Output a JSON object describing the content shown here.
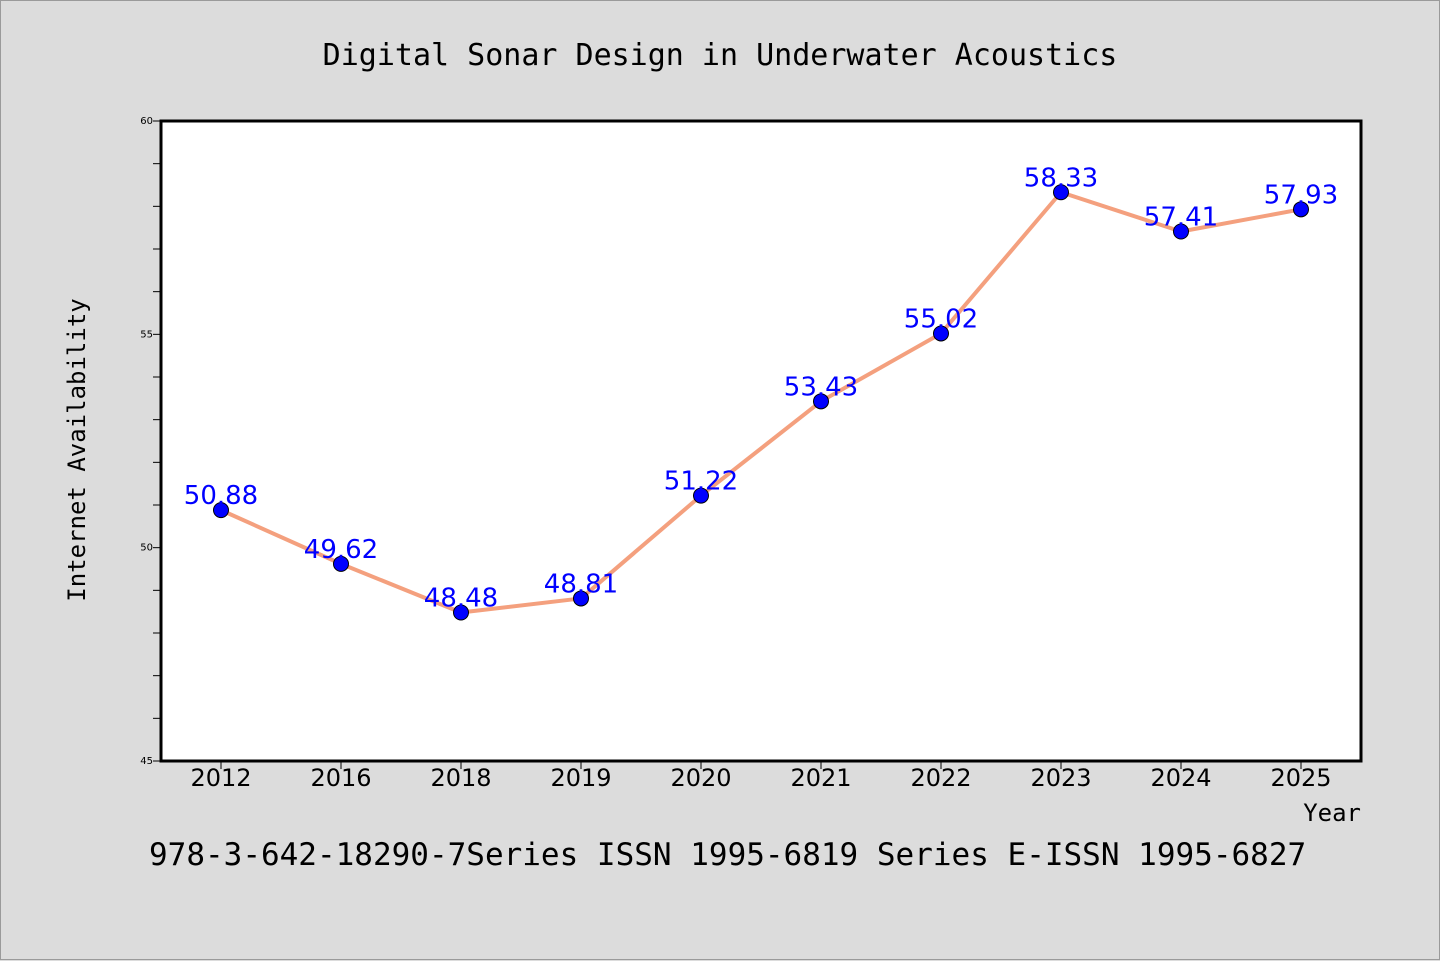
{
  "chart_data": {
    "type": "line",
    "title": "Digital Sonar Design in Underwater Acoustics",
    "xlabel": "Year",
    "ylabel": "Internet Availability",
    "categories": [
      "2012",
      "2016",
      "2018",
      "2019",
      "2020",
      "2021",
      "2022",
      "2023",
      "2024",
      "2025"
    ],
    "series": [
      {
        "values": [
          50.88,
          49.62,
          48.48,
          48.81,
          51.22,
          53.43,
          55.02,
          58.33,
          57.41,
          57.93
        ],
        "labels": [
          "50.88",
          "49.62",
          "48.48",
          "48.81",
          "51.22",
          "53.43",
          "55.02",
          "58.33",
          "57.41",
          "57.93"
        ],
        "line_color": "#f4a07e",
        "marker_color": "#0000ff",
        "label_color": "#0000ff"
      }
    ],
    "ylim": [
      45,
      60
    ],
    "yticks": [
      "45",
      "50",
      "55",
      "60"
    ],
    "grid": false,
    "background": "#dcdcdc",
    "plot_background": "#ffffff",
    "footer": "978-3-642-18290-7Series ISSN 1995-6819 Series E-ISSN 1995-6827"
  }
}
